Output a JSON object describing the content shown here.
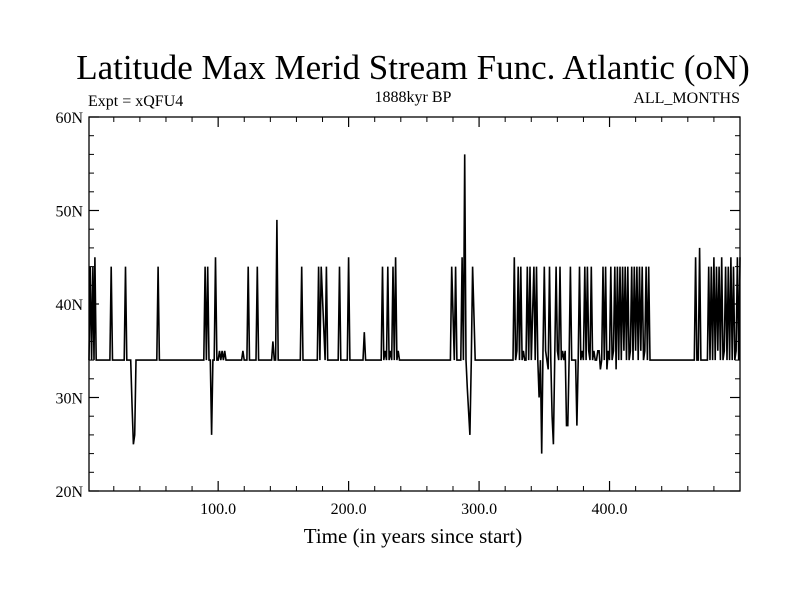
{
  "chart_data": {
    "type": "line",
    "title": "Latitude Max Merid Stream Func. Atlantic (oN)",
    "left_label": "Expt = xQFU4",
    "center_label": "1888kyr BP",
    "right_label": "ALL_MONTHS",
    "xlabel": "Time (in years since start)",
    "ylabel": "",
    "xlim": [
      1,
      500
    ],
    "ylim": [
      20,
      60
    ],
    "x_ticks": [
      {
        "value": 100,
        "label": "100.0"
      },
      {
        "value": 200,
        "label": "200.0"
      },
      {
        "value": 300,
        "label": "300.0"
      },
      {
        "value": 400,
        "label": "400.0"
      }
    ],
    "y_ticks": [
      {
        "value": 20,
        "label": "20N"
      },
      {
        "value": 30,
        "label": "30N"
      },
      {
        "value": 40,
        "label": "40N"
      },
      {
        "value": 50,
        "label": "50N"
      },
      {
        "value": 60,
        "label": "60N"
      }
    ],
    "grid": false,
    "line_color": "#000000",
    "series": [
      {
        "x": [
          1,
          2,
          3,
          4,
          4.8,
          5.5,
          6.5,
          7.5,
          8,
          9,
          10,
          17,
          18,
          19,
          20,
          28,
          29,
          30,
          31,
          33,
          34,
          35,
          36,
          37,
          38,
          52,
          53,
          54,
          55,
          56,
          88,
          89,
          90,
          91,
          92,
          93,
          94,
          95,
          96,
          97,
          98,
          99,
          100,
          101,
          102,
          103,
          104,
          105,
          106,
          118,
          119,
          120,
          122,
          123,
          124,
          129,
          130,
          131,
          132,
          140,
          141,
          142,
          143,
          144,
          145,
          146,
          147,
          163,
          164,
          165,
          176,
          177,
          178,
          179,
          182,
          183,
          184,
          192,
          193,
          194,
          199,
          200,
          201,
          202,
          211,
          212,
          213,
          214,
          225,
          226,
          227,
          228,
          229,
          230,
          231,
          232,
          233,
          234,
          235,
          236,
          237,
          238,
          239,
          240,
          241,
          278,
          279,
          281,
          282,
          283,
          286,
          287,
          288,
          289,
          290,
          291,
          293,
          294,
          295,
          297,
          298,
          299,
          326,
          327,
          328,
          329,
          330,
          331,
          332,
          333,
          334,
          335,
          336,
          337,
          338,
          339,
          340,
          342,
          343,
          344,
          345,
          346,
          347,
          348,
          349,
          350,
          351,
          352,
          353,
          354,
          355,
          356,
          357,
          358,
          359,
          360,
          361,
          362,
          363,
          364,
          365,
          366,
          367,
          368,
          369,
          370,
          371,
          372,
          373,
          374,
          375,
          376,
          377,
          378,
          379,
          380,
          381,
          382,
          383,
          384,
          385,
          386,
          387,
          388,
          389,
          390,
          391,
          392,
          393,
          394,
          395,
          396,
          397,
          398,
          399,
          400,
          401,
          402,
          403,
          404,
          405,
          406,
          407,
          408,
          409,
          410,
          411,
          412,
          413,
          414,
          415,
          416,
          417,
          418,
          419,
          420,
          421,
          422,
          423,
          424,
          425,
          426,
          427,
          428,
          429,
          430,
          431,
          432,
          433,
          434,
          435,
          436,
          437,
          438,
          439,
          440,
          465,
          466,
          467,
          468,
          469,
          470,
          471,
          475,
          476,
          477,
          478,
          479,
          480,
          481,
          482,
          483,
          484,
          485,
          486,
          487,
          488,
          489,
          490,
          491,
          492,
          493,
          494,
          495,
          496,
          497,
          498,
          499,
          500
        ],
        "y": [
          34,
          44,
          34,
          44,
          34,
          45,
          34,
          34,
          34,
          34,
          34,
          34,
          44,
          34,
          34,
          34,
          44,
          34,
          34,
          34,
          29,
          25,
          26,
          34,
          34,
          34,
          34,
          44,
          34,
          34,
          34,
          34,
          44,
          34,
          44,
          34,
          34,
          26,
          34,
          34,
          45,
          34,
          34,
          35,
          34,
          35,
          34,
          35,
          34,
          34,
          35,
          34,
          34,
          44,
          34,
          34,
          44,
          34,
          34,
          34,
          34,
          36,
          34,
          34,
          49,
          34,
          34,
          34,
          44,
          34,
          34,
          44,
          34,
          44,
          34,
          44,
          34,
          34,
          44,
          34,
          34,
          45,
          34,
          34,
          34,
          37,
          34,
          34,
          34,
          44,
          34,
          35,
          34,
          44,
          34,
          35,
          34,
          44,
          34,
          45,
          34,
          35,
          34,
          34,
          34,
          34,
          44,
          34,
          44,
          34,
          34,
          45,
          34,
          56,
          34,
          31,
          26,
          34,
          44,
          34,
          34,
          34,
          34,
          45,
          34,
          35,
          44,
          34,
          44,
          34,
          35,
          34,
          34,
          44,
          34,
          44,
          34,
          44,
          34,
          44,
          34,
          30,
          34,
          24,
          35,
          44,
          35,
          34,
          33,
          44,
          34,
          28,
          25,
          34,
          44,
          35,
          34,
          44,
          34,
          35,
          34,
          35,
          27,
          27,
          34,
          44,
          34,
          34,
          34,
          34,
          27,
          34,
          44,
          34,
          35,
          34,
          44,
          34,
          44,
          35,
          34,
          44,
          34,
          35,
          34,
          34,
          35,
          35,
          33,
          34,
          44,
          34,
          44,
          33,
          35,
          34,
          44,
          34,
          35,
          44,
          33,
          44,
          34,
          44,
          34,
          44,
          35,
          44,
          34,
          44,
          34,
          35,
          44,
          34,
          44,
          35,
          44,
          34,
          44,
          35,
          44,
          34,
          35,
          44,
          34,
          44,
          34,
          34,
          34,
          34,
          34,
          34,
          34,
          34,
          34,
          34,
          34,
          45,
          34,
          34,
          46,
          34,
          34,
          34,
          44,
          34,
          44,
          34,
          45,
          34,
          44,
          35,
          44,
          34,
          45,
          34,
          35,
          44,
          34,
          44,
          34,
          45,
          34,
          44,
          34,
          35,
          45,
          34,
          45
        ]
      }
    ]
  }
}
